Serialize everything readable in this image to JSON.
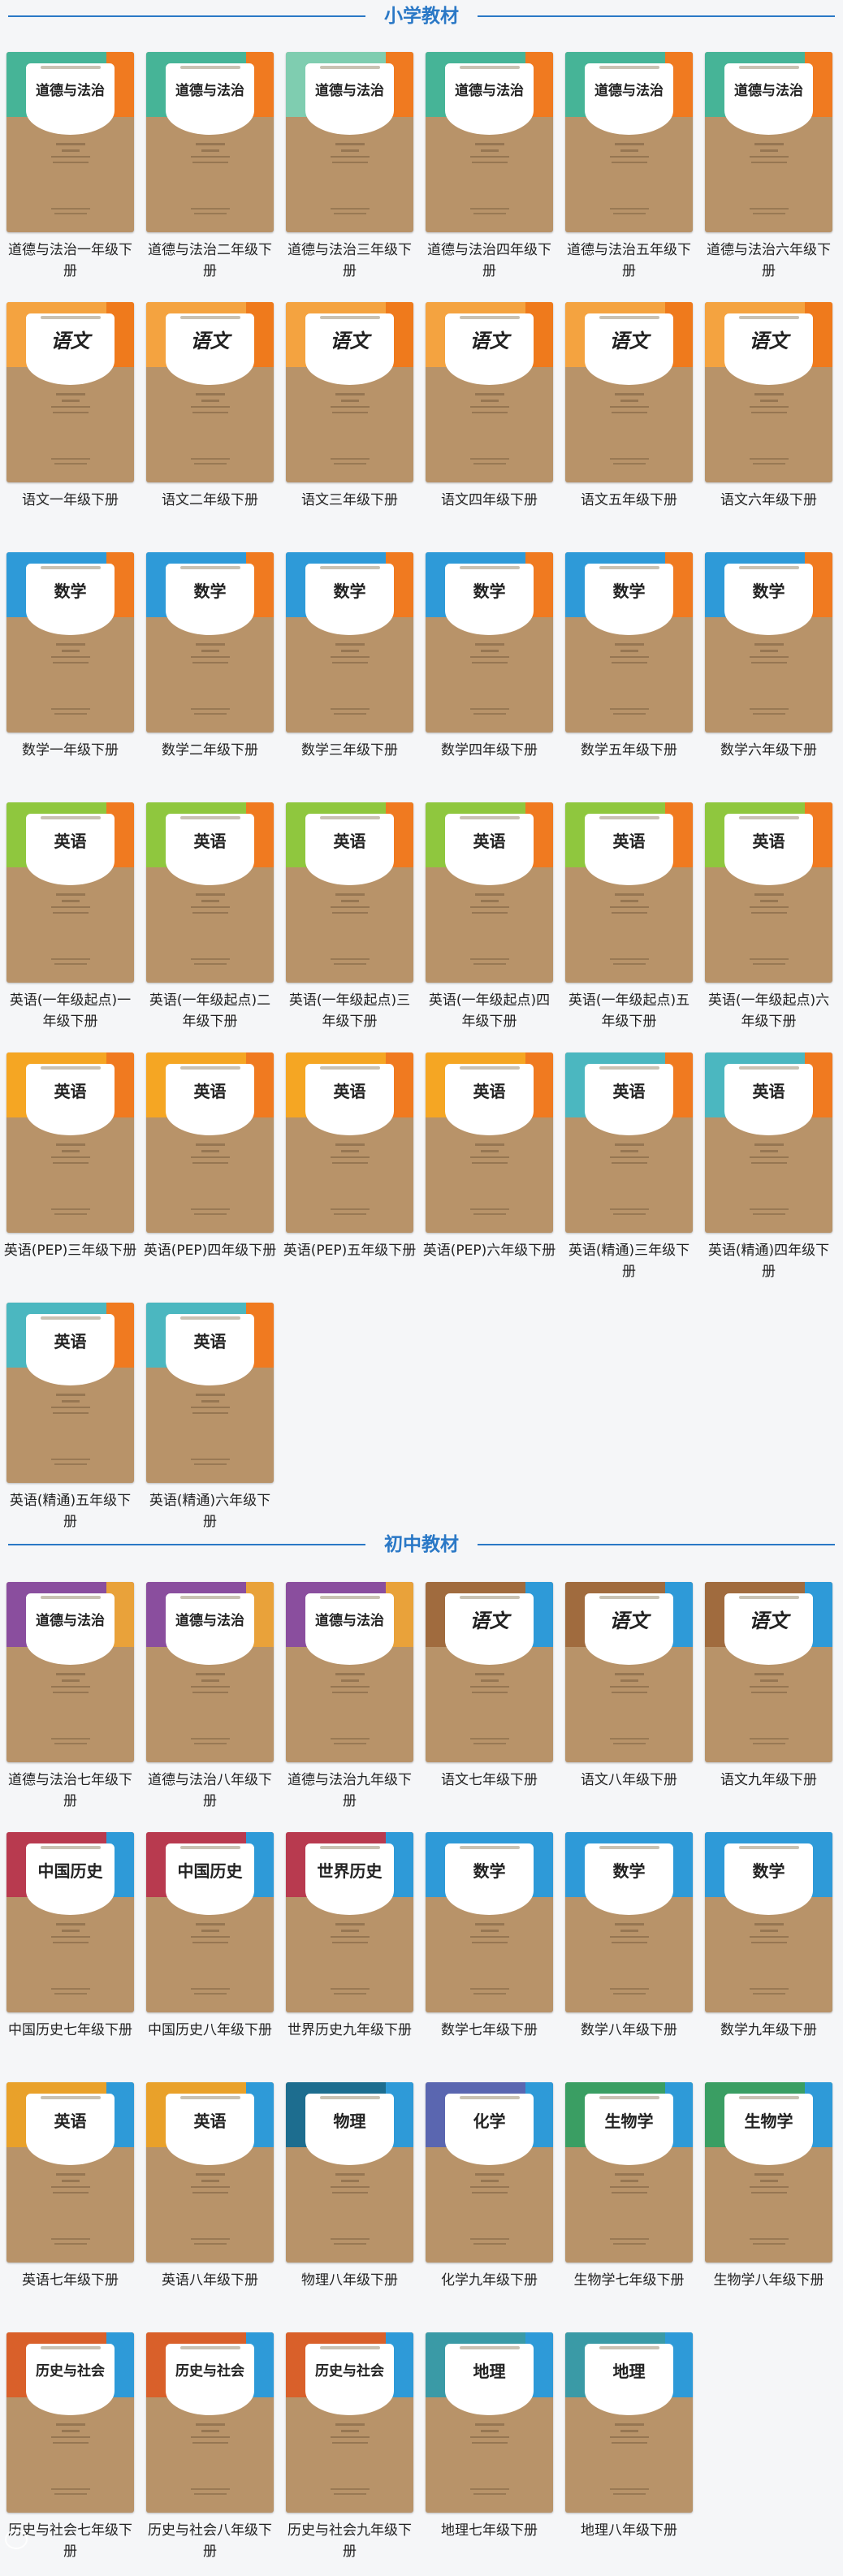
{
  "sections": [
    {
      "title": "小学教材",
      "books": [
        {
          "caption": "道德与法治一年级下册",
          "cover_title": "道德与法治",
          "band": "#46b497",
          "accent": "#f07a20"
        },
        {
          "caption": "道德与法治二年级下册",
          "cover_title": "道德与法治",
          "band": "#46b497",
          "accent": "#f07a20"
        },
        {
          "caption": "道德与法治三年级下册",
          "cover_title": "道德与法治",
          "band": "#7fcdb0",
          "accent": "#f07a20"
        },
        {
          "caption": "道德与法治四年级下册",
          "cover_title": "道德与法治",
          "band": "#46b497",
          "accent": "#f07a20"
        },
        {
          "caption": "道德与法治五年级下册",
          "cover_title": "道德与法治",
          "band": "#46b497",
          "accent": "#f07a20"
        },
        {
          "caption": "道德与法治六年级下册",
          "cover_title": "道德与法治",
          "band": "#46b497",
          "accent": "#f07a20"
        },
        {
          "caption": "语文一年级下册",
          "cover_title": "语文",
          "band": "#f4a340",
          "accent": "#ef7a1c"
        },
        {
          "caption": "语文二年级下册",
          "cover_title": "语文",
          "band": "#f4a340",
          "accent": "#ef7a1c"
        },
        {
          "caption": "语文三年级下册",
          "cover_title": "语文",
          "band": "#f4a340",
          "accent": "#ef7a1c"
        },
        {
          "caption": "语文四年级下册",
          "cover_title": "语文",
          "band": "#f4a340",
          "accent": "#ef7a1c"
        },
        {
          "caption": "语文五年级下册",
          "cover_title": "语文",
          "band": "#f4a340",
          "accent": "#ef7a1c"
        },
        {
          "caption": "语文六年级下册",
          "cover_title": "语文",
          "band": "#f4a340",
          "accent": "#ef7a1c"
        },
        {
          "caption": "数学一年级下册",
          "cover_title": "数学",
          "band": "#2e9ad8",
          "accent": "#f07a20"
        },
        {
          "caption": "数学二年级下册",
          "cover_title": "数学",
          "band": "#2e9ad8",
          "accent": "#f07a20"
        },
        {
          "caption": "数学三年级下册",
          "cover_title": "数学",
          "band": "#2e9ad8",
          "accent": "#f07a20"
        },
        {
          "caption": "数学四年级下册",
          "cover_title": "数学",
          "band": "#2e9ad8",
          "accent": "#f07a20"
        },
        {
          "caption": "数学五年级下册",
          "cover_title": "数学",
          "band": "#2e9ad8",
          "accent": "#f07a20"
        },
        {
          "caption": "数学六年级下册",
          "cover_title": "数学",
          "band": "#2e9ad8",
          "accent": "#f07a20"
        },
        {
          "caption": "英语(一年级起点)一年级下册",
          "cover_title": "英语",
          "band": "#8fc73e",
          "accent": "#f07a20"
        },
        {
          "caption": "英语(一年级起点)二年级下册",
          "cover_title": "英语",
          "band": "#8fc73e",
          "accent": "#f07a20"
        },
        {
          "caption": "英语(一年级起点)三年级下册",
          "cover_title": "英语",
          "band": "#8fc73e",
          "accent": "#f07a20"
        },
        {
          "caption": "英语(一年级起点)四年级下册",
          "cover_title": "英语",
          "band": "#8fc73e",
          "accent": "#f07a20"
        },
        {
          "caption": "英语(一年级起点)五年级下册",
          "cover_title": "英语",
          "band": "#8fc73e",
          "accent": "#f07a20"
        },
        {
          "caption": "英语(一年级起点)六年级下册",
          "cover_title": "英语",
          "band": "#8fc73e",
          "accent": "#f07a20"
        },
        {
          "caption": "英语(PEP)三年级下册",
          "cover_title": "英语",
          "band": "#f5a623",
          "accent": "#f07a20"
        },
        {
          "caption": "英语(PEP)四年级下册",
          "cover_title": "英语",
          "band": "#f5a623",
          "accent": "#f07a20"
        },
        {
          "caption": "英语(PEP)五年级下册",
          "cover_title": "英语",
          "band": "#f5a623",
          "accent": "#f07a20"
        },
        {
          "caption": "英语(PEP)六年级下册",
          "cover_title": "英语",
          "band": "#f5a623",
          "accent": "#f07a20"
        },
        {
          "caption": "英语(精通)三年级下册",
          "cover_title": "英语",
          "band": "#4bb7c0",
          "accent": "#f07a20"
        },
        {
          "caption": "英语(精通)四年级下册",
          "cover_title": "英语",
          "band": "#4bb7c0",
          "accent": "#f07a20"
        },
        {
          "caption": "英语(精通)五年级下册",
          "cover_title": "英语",
          "band": "#4bb7c0",
          "accent": "#f07a20"
        },
        {
          "caption": "英语(精通)六年级下册",
          "cover_title": "英语",
          "band": "#4bb7c0",
          "accent": "#f07a20"
        }
      ]
    },
    {
      "title": "初中教材",
      "books": [
        {
          "caption": "道德与法治七年级下册",
          "cover_title": "道德与法治",
          "band": "#8a4e9e",
          "accent": "#e9a23a"
        },
        {
          "caption": "道德与法治八年级下册",
          "cover_title": "道德与法治",
          "band": "#8a4e9e",
          "accent": "#e9a23a"
        },
        {
          "caption": "道德与法治九年级下册",
          "cover_title": "道德与法治",
          "band": "#8a4e9e",
          "accent": "#e9a23a"
        },
        {
          "caption": "语文七年级下册",
          "cover_title": "语文",
          "band": "#a06b3e",
          "accent": "#2e9ad8"
        },
        {
          "caption": "语文八年级下册",
          "cover_title": "语文",
          "band": "#a06b3e",
          "accent": "#2e9ad8"
        },
        {
          "caption": "语文九年级下册",
          "cover_title": "语文",
          "band": "#a06b3e",
          "accent": "#2e9ad8"
        },
        {
          "caption": "中国历史七年级下册",
          "cover_title": "中国历史",
          "band": "#b83a4f",
          "accent": "#2e9ad8"
        },
        {
          "caption": "中国历史八年级下册",
          "cover_title": "中国历史",
          "band": "#b83a4f",
          "accent": "#2e9ad8"
        },
        {
          "caption": "世界历史九年级下册",
          "cover_title": "世界历史",
          "band": "#b83a4f",
          "accent": "#2e9ad8"
        },
        {
          "caption": "数学七年级下册",
          "cover_title": "数学",
          "band": "#2e9ad8",
          "accent": "#2e9ad8"
        },
        {
          "caption": "数学八年级下册",
          "cover_title": "数学",
          "band": "#2e9ad8",
          "accent": "#2e9ad8"
        },
        {
          "caption": "数学九年级下册",
          "cover_title": "数学",
          "band": "#2e9ad8",
          "accent": "#2e9ad8"
        },
        {
          "caption": "英语七年级下册",
          "cover_title": "英语",
          "band": "#e9a12a",
          "accent": "#2e9ad8"
        },
        {
          "caption": "英语八年级下册",
          "cover_title": "英语",
          "band": "#e9a12a",
          "accent": "#2e9ad8"
        },
        {
          "caption": "物理八年级下册",
          "cover_title": "物理",
          "band": "#1d6d8f",
          "accent": "#2e9ad8"
        },
        {
          "caption": "化学九年级下册",
          "cover_title": "化学",
          "band": "#5a66b0",
          "accent": "#2e9ad8"
        },
        {
          "caption": "生物学七年级下册",
          "cover_title": "生物学",
          "band": "#3a9e63",
          "accent": "#2e9ad8"
        },
        {
          "caption": "生物学八年级下册",
          "cover_title": "生物学",
          "band": "#3a9e63",
          "accent": "#2e9ad8"
        },
        {
          "caption": "历史与社会七年级下册",
          "cover_title": "历史与社会",
          "band": "#d9602a",
          "accent": "#2e9ad8"
        },
        {
          "caption": "历史与社会八年级下册",
          "cover_title": "历史与社会",
          "band": "#d9602a",
          "accent": "#2e9ad8"
        },
        {
          "caption": "历史与社会九年级下册",
          "cover_title": "历史与社会",
          "band": "#d9602a",
          "accent": "#2e9ad8"
        },
        {
          "caption": "地理七年级下册",
          "cover_title": "地理",
          "band": "#3a9aa6",
          "accent": "#2e9ad8"
        },
        {
          "caption": "地理八年级下册",
          "cover_title": "地理",
          "band": "#3a9aa6",
          "accent": "#2e9ad8"
        }
      ]
    }
  ]
}
